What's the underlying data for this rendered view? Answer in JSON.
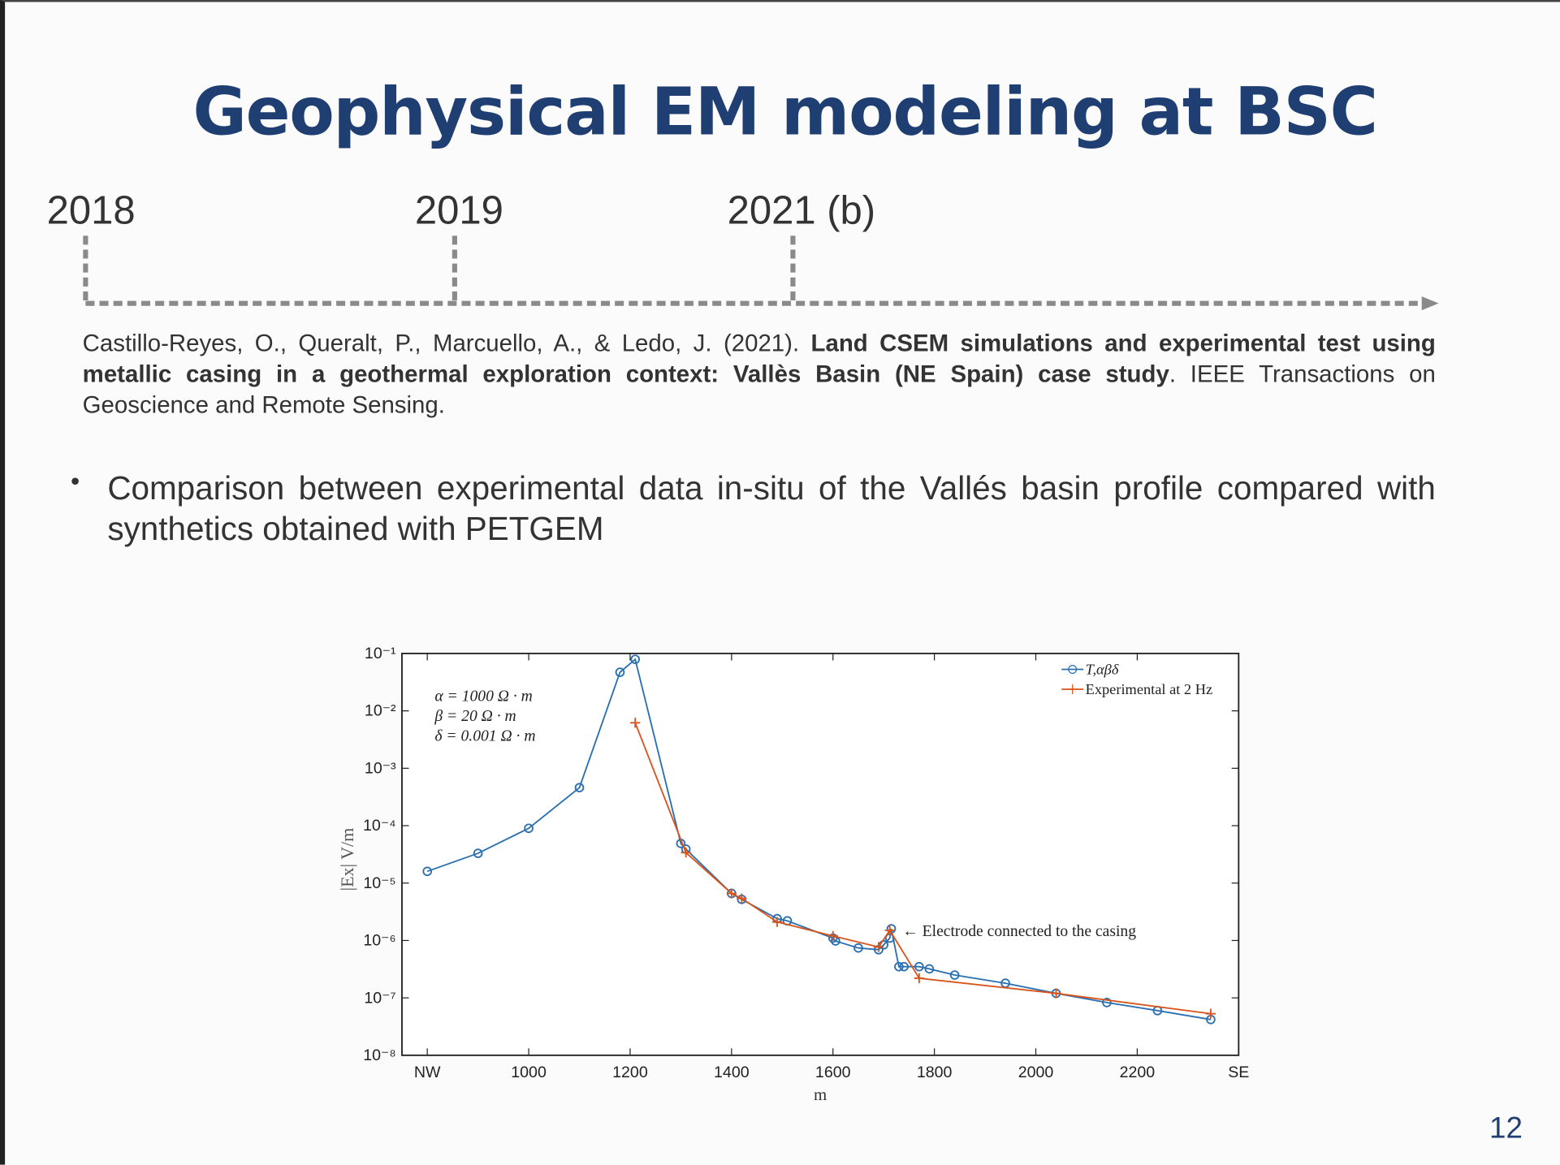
{
  "slide": {
    "title": "Geophysical EM modeling at BSC",
    "timeline": [
      "2018",
      "2019",
      "2021 (b)"
    ],
    "reference": {
      "authors": "Castillo-Reyes, O., Queralt, P., Marcuello, A., & Ledo, J. (2021).",
      "title": "Land CSEM simulations and experimental test using metallic casing in a geothermal exploration context: Vallès Basin (NE Spain) case study",
      "journal": ". IEEE Transactions on Geoscience and Remote Sensing."
    },
    "bullet": "Comparison between experimental data in-situ of the Vallés basin profile compared with synthetics obtained with PETGEM",
    "page_number": "12"
  },
  "chart_data": {
    "type": "line",
    "xlabel": "m",
    "ylabel": "|Ex| V/m",
    "log_y": true,
    "xlim": [
      750,
      2400
    ],
    "ylim": [
      1e-08,
      0.1
    ],
    "xticks": [
      {
        "value": 800,
        "label": "NW"
      },
      1000,
      1200,
      1400,
      1600,
      1800,
      2000,
      2200,
      {
        "value": 2400,
        "label": "SE"
      }
    ],
    "yticks": [
      {
        "value": 0.1,
        "label": "10⁻¹"
      },
      {
        "value": 0.01,
        "label": "10⁻²"
      },
      {
        "value": 0.001,
        "label": "10⁻³"
      },
      {
        "value": 0.0001,
        "label": "10⁻⁴"
      },
      {
        "value": 1e-05,
        "label": "10⁻⁵"
      },
      {
        "value": 1e-06,
        "label": "10⁻⁶"
      },
      {
        "value": 1e-07,
        "label": "10⁻⁷"
      },
      {
        "value": 1e-08,
        "label": "10⁻⁸"
      }
    ],
    "annotations": [
      "α = 1000 Ω · m",
      "β = 20 Ω · m",
      "δ = 0.001 Ω · m",
      "← Electrode connected to the casing"
    ],
    "series": [
      {
        "name": "T,αβδ",
        "color": "#2a6fb0",
        "marker": "circle",
        "x": [
          800,
          900,
          1000,
          1100,
          1180,
          1210,
          1300,
          1310,
          1400,
          1420,
          1490,
          1510,
          1600,
          1605,
          1650,
          1690,
          1700,
          1712,
          1715,
          1730,
          1740,
          1770,
          1790,
          1840,
          1940,
          2040,
          2140,
          2240,
          2345
        ],
        "values": [
          1.6e-05,
          3.3e-05,
          9e-05,
          0.00046,
          0.047,
          0.079,
          4.9e-05,
          3.9e-05,
          6.6e-06,
          5.2e-06,
          2.4e-06,
          2.2e-06,
          1.1e-06,
          9.8e-07,
          7.4e-07,
          6.9e-07,
          8.4e-07,
          1.1e-06,
          1.6e-06,
          3.5e-07,
          3.5e-07,
          3.5e-07,
          3.2e-07,
          2.5e-07,
          1.8e-07,
          1.2e-07,
          8.3e-08,
          6e-08,
          4.2e-08
        ]
      },
      {
        "name": "Experimental at 2 Hz",
        "color": "#d9541a",
        "marker": "plus",
        "x": [
          1210,
          1310,
          1400,
          1420,
          1490,
          1600,
          1690,
          1712,
          1770,
          2040,
          2345
        ],
        "values": [
          0.0062,
          3.4e-05,
          6.6e-06,
          5.4e-06,
          2.1e-06,
          1.2e-06,
          7.7e-07,
          1.5e-06,
          2.2e-07,
          1.2e-07,
          5.3e-08
        ]
      }
    ]
  }
}
